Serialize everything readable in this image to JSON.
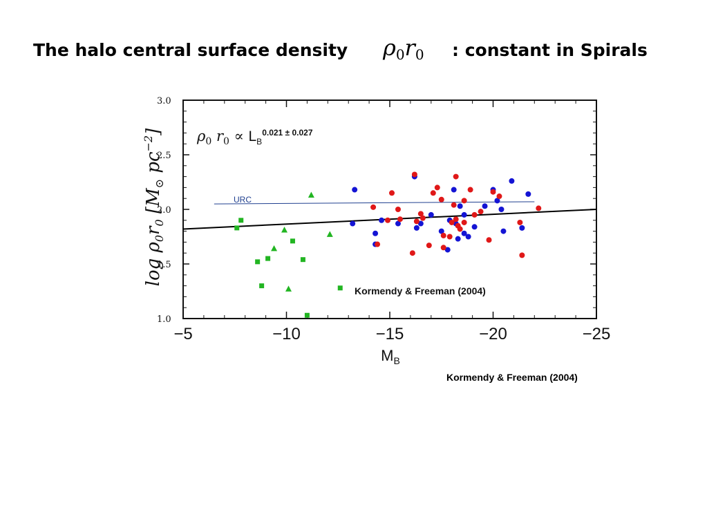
{
  "slide": {
    "title_prefix": "The halo central surface density",
    "title_symbol": "ρ0r0",
    "title_suffix": ": constant in Spirals",
    "caption": "Kormendy & Freeman (2004)"
  },
  "chart_data": {
    "type": "scatter",
    "title": "",
    "xlabel": "MB",
    "ylabel": "log ρ0 r0 [M⊙ pc−2]",
    "xlim": [
      -5,
      -25
    ],
    "ylim": [
      1.0,
      3.0
    ],
    "x_ticks": [
      -5,
      -10,
      -15,
      -20,
      -25
    ],
    "x_tick_labels": [
      "−5",
      "−10",
      "−15",
      "−20",
      "−25"
    ],
    "y_ticks": [
      1.0,
      1.5,
      2.0,
      2.5,
      3.0
    ],
    "y_tick_labels": [
      "1.0",
      "1.5",
      "2.0",
      "2.5",
      "3.0"
    ],
    "grid": false,
    "annotations": {
      "relation": "ρ0 r0 ∝ LB0.021 ± 0.027",
      "inner_credit": "Kormendy & Freeman (2004)",
      "urc_label": "URC"
    },
    "lines": [
      {
        "name": "URC",
        "color": "#1f3f8f",
        "x": [
          -6.5,
          -22
        ],
        "y": [
          2.05,
          2.07
        ]
      },
      {
        "name": "fit",
        "color": "#000000",
        "x": [
          -5,
          -25
        ],
        "y": [
          1.82,
          2.0
        ]
      }
    ],
    "series": [
      {
        "marker": "square",
        "color": "#22b522",
        "points": [
          [
            -7.6,
            1.83
          ],
          [
            -7.8,
            1.9
          ],
          [
            -8.6,
            1.52
          ],
          [
            -9.1,
            1.55
          ],
          [
            -8.8,
            1.3
          ],
          [
            -10.3,
            1.71
          ],
          [
            -10.8,
            1.54
          ],
          [
            -11,
            1.03
          ],
          [
            -12.6,
            1.28
          ]
        ]
      },
      {
        "marker": "triangle",
        "color": "#22b522",
        "points": [
          [
            -11.2,
            2.13
          ],
          [
            -9.9,
            1.81
          ],
          [
            -9.4,
            1.64
          ],
          [
            -10.1,
            1.27
          ],
          [
            -12.1,
            1.77
          ]
        ]
      },
      {
        "marker": "circle",
        "color": "#1414d4",
        "points": [
          [
            -13.3,
            2.18
          ],
          [
            -13.2,
            1.87
          ],
          [
            -14.3,
            1.78
          ],
          [
            -14.3,
            1.68
          ],
          [
            -14.6,
            1.9
          ],
          [
            -15.4,
            1.87
          ],
          [
            -16.2,
            2.3
          ],
          [
            -16.3,
            1.83
          ],
          [
            -16.5,
            1.87
          ],
          [
            -17,
            1.95
          ],
          [
            -17.5,
            1.8
          ],
          [
            -17.8,
            1.63
          ],
          [
            -17.9,
            1.9
          ],
          [
            -18.1,
            2.18
          ],
          [
            -18.2,
            1.87
          ],
          [
            -18.3,
            1.73
          ],
          [
            -18.4,
            2.03
          ],
          [
            -18.6,
            1.78
          ],
          [
            -18.6,
            1.95
          ],
          [
            -18.8,
            1.75
          ],
          [
            -19.1,
            1.84
          ],
          [
            -19.6,
            2.03
          ],
          [
            -20,
            2.18
          ],
          [
            -20.2,
            2.08
          ],
          [
            -20.4,
            2.0
          ],
          [
            -20.5,
            1.8
          ],
          [
            -20.9,
            2.26
          ],
          [
            -21.4,
            1.83
          ],
          [
            -21.7,
            2.14
          ]
        ]
      },
      {
        "marker": "circle",
        "color": "#e01818",
        "points": [
          [
            -14.2,
            2.02
          ],
          [
            -14.4,
            1.68
          ],
          [
            -14.9,
            1.9
          ],
          [
            -15.1,
            2.15
          ],
          [
            -15.4,
            2.0
          ],
          [
            -15.5,
            1.91
          ],
          [
            -16.1,
            1.6
          ],
          [
            -16.2,
            2.32
          ],
          [
            -16.3,
            1.89
          ],
          [
            -16.5,
            1.96
          ],
          [
            -16.6,
            1.92
          ],
          [
            -16.9,
            1.67
          ],
          [
            -17.1,
            2.15
          ],
          [
            -17.3,
            2.2
          ],
          [
            -17.5,
            2.09
          ],
          [
            -17.6,
            1.65
          ],
          [
            -17.6,
            1.76
          ],
          [
            -17.9,
            1.75
          ],
          [
            -18,
            1.88
          ],
          [
            -18.1,
            2.04
          ],
          [
            -18.2,
            2.3
          ],
          [
            -18.2,
            1.91
          ],
          [
            -18.3,
            1.85
          ],
          [
            -18.4,
            1.82
          ],
          [
            -18.6,
            1.88
          ],
          [
            -18.6,
            2.08
          ],
          [
            -18.9,
            2.18
          ],
          [
            -19.1,
            1.95
          ],
          [
            -19.4,
            1.98
          ],
          [
            -19.8,
            1.72
          ],
          [
            -20,
            2.16
          ],
          [
            -20.3,
            2.12
          ],
          [
            -21.3,
            1.88
          ],
          [
            -21.4,
            1.58
          ],
          [
            -22.2,
            2.01
          ]
        ]
      }
    ]
  }
}
